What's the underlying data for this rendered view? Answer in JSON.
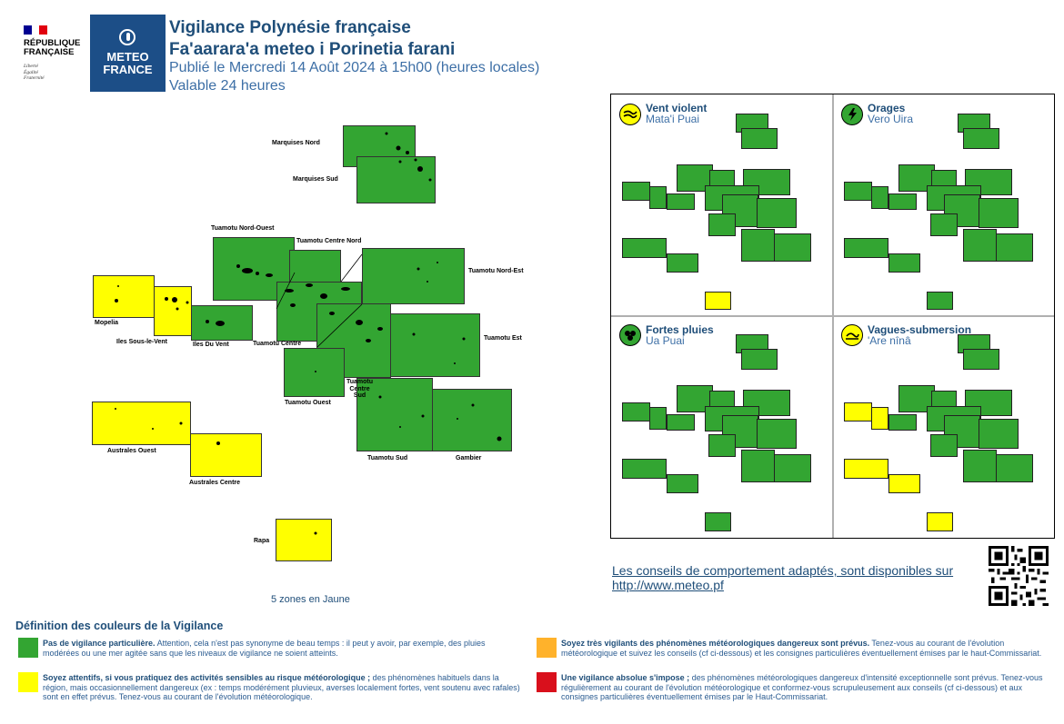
{
  "header": {
    "republique_line1": "RÉPUBLIQUE",
    "republique_line2": "FRANÇAISE",
    "motto": [
      "Liberté",
      "Égalité",
      "Fraternité"
    ],
    "meteo_line1": "METEO",
    "meteo_line2": "FRANCE",
    "title": "Vigilance Polynésie française",
    "title_tahitian": "Fa'aarara'a meteo i Porinetia farani",
    "published": "Publié le Mercredi 14 Août 2024 à 15h00 (heures locales)",
    "validity": "Valable 24 heures"
  },
  "colors": {
    "green": "#33a532",
    "yellow": "#ffff00",
    "orange": "#ffb22b",
    "red": "#d9101c",
    "brand_blue": "#1c4e87"
  },
  "map": {
    "zones": [
      {
        "name": "Marquises Nord",
        "level": "green"
      },
      {
        "name": "Marquises Sud",
        "level": "green"
      },
      {
        "name": "Tuamotu Nord-Ouest",
        "level": "green"
      },
      {
        "name": "Tuamotu Centre Nord",
        "level": "green"
      },
      {
        "name": "Tuamotu Nord-Est",
        "level": "green"
      },
      {
        "name": "Mopelia",
        "level": "yellow"
      },
      {
        "name": "Iles Sous-le-Vent",
        "level": "yellow"
      },
      {
        "name": "Iles Du Vent",
        "level": "green"
      },
      {
        "name": "Tuamotu Centre",
        "level": "green"
      },
      {
        "name": "Tuamotu Est",
        "level": "green"
      },
      {
        "name": "Tuamotu Ouest",
        "level": "green"
      },
      {
        "name": "Tuamotu Centre Sud",
        "level": "green"
      },
      {
        "name": "Australes Ouest",
        "level": "yellow"
      },
      {
        "name": "Tuamotu Sud",
        "level": "green"
      },
      {
        "name": "Gambier",
        "level": "green"
      },
      {
        "name": "Australes Centre",
        "level": "yellow"
      },
      {
        "name": "Rapa",
        "level": "yellow"
      }
    ],
    "labels": {
      "marquises_nord": "Marquises Nord",
      "marquises_sud": "Marquises Sud",
      "tuamotu_no": "Tuamotu Nord-Ouest",
      "tuamotu_cn": "Tuamotu Centre Nord",
      "tuamotu_ne": "Tuamotu Nord-Est",
      "mopelia": "Mopelia",
      "slv": "Iles Sous-le-Vent",
      "idv": "Iles Du Vent",
      "tuamotu_c": "Tuamotu Centre",
      "tuamotu_e": "Tuamotu Est",
      "tuamotu_o": "Tuamotu Ouest",
      "tuamotu_cs1": "Tuamotu",
      "tuamotu_cs2": "Centre",
      "tuamotu_cs3": "Sud",
      "australes_o": "Australes Ouest",
      "tuamotu_s": "Tuamotu Sud",
      "gambier": "Gambier",
      "australes_c": "Australes Centre",
      "rapa": "Rapa"
    },
    "yellow_count_text": "5 zones en Jaune"
  },
  "phenomena": [
    {
      "title": "Vent violent",
      "subtitle": "Mata'i Puai",
      "icon": "wind-icon"
    },
    {
      "title": "Orages",
      "subtitle": "Vero Uira",
      "icon": "thunderstorm-icon"
    },
    {
      "title": "Fortes pluies",
      "subtitle": "Ua Puai",
      "icon": "heavy-rain-icon"
    },
    {
      "title": "Vagues-submersion",
      "subtitle": "'Are nînâ",
      "icon": "wave-submersion-icon"
    }
  ],
  "advice": {
    "line1": "Les conseils de comportement adaptés, sont disponibles sur",
    "link": "http://www.meteo.pf"
  },
  "legend": {
    "title": "Définition des couleurs de la Vigilance",
    "green_bold": "Pas de vigilance particulière.",
    "green_text": " Attention, cela n'est pas synonyme de beau temps : il peut y avoir, par exemple, des pluies modérées ou une mer agitée sans que les niveaux de vigilance ne soient atteints.",
    "yellow_bold": "Soyez attentifs, si vous pratiquez des activités sensibles au risque météorologique ;",
    "yellow_text": " des phénomènes habituels dans la région, mais occasionnellement dangereux (ex : temps modérément pluvieux, averses localement fortes, vent soutenu avec rafales) sont en effet prévus. Tenez-vous au courant de l'évolution météorologique.",
    "orange_bold": "Soyez très vigilants des phénomènes météorologiques dangereux sont prévus.",
    "orange_text": " Tenez-vous au courant de l'évolution météorologique et suivez les conseils (cf ci-dessous) et les consignes particulières éventuellement émises par le haut-Commissariat.",
    "red_bold": "Une vigilance absolue s'impose ;",
    "red_text": " des phénomènes météorologiques dangereux d'intensité exceptionnelle sont prévus. Tenez-vous régulièrement au courant de l'évolution météorologique et conformez-vous scrupuleusement aux conseils (cf ci-dessous) et aux consignes particulières éventuellement émises par le Haut-Commissariat."
  }
}
